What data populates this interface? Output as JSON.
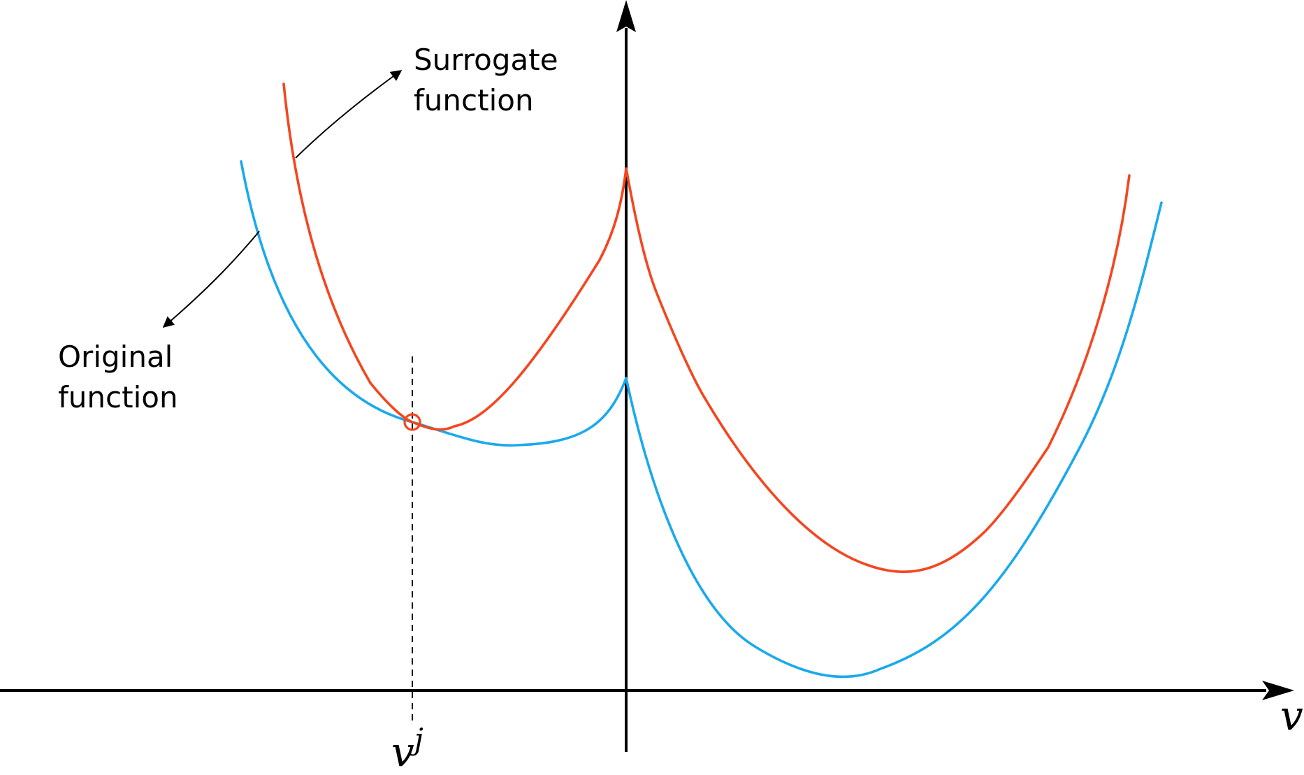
{
  "diagram": {
    "surrogate_label_line1": "Surrogate",
    "surrogate_label_line2": "function",
    "original_label_line1": "Original",
    "original_label_line2": "function",
    "x_axis_label": "v",
    "point_label_base": "v",
    "point_label_superscript": "j"
  },
  "colors": {
    "surrogate": "#f4461f",
    "original": "#1ba9ec",
    "axis": "#000000"
  }
}
